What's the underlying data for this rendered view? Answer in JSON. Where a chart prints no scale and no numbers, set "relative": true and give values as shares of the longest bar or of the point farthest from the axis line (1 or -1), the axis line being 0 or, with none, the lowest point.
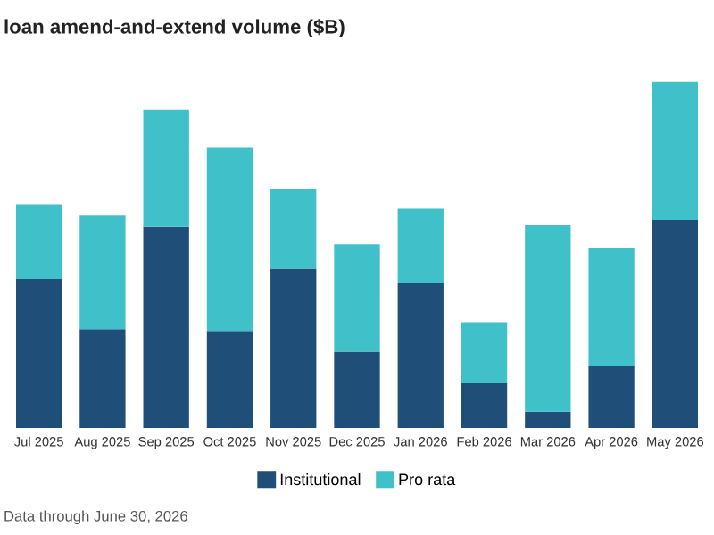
{
  "chart_data": {
    "type": "bar",
    "title": "loan amend-and-extend volume ($B)",
    "categories": [
      "Jul 2025",
      "Aug 2025",
      "Sep 2025",
      "Oct 2025",
      "Nov 2025",
      "Dec 2025",
      "Jan 2026",
      "Feb 2026",
      "Mar 2026",
      "Apr 2026",
      "May 2026"
    ],
    "stacked": true,
    "relative": true,
    "series": [
      {
        "name": "Institutional",
        "color": "#1f4e79",
        "values": [
          0.43,
          0.285,
          0.58,
          0.28,
          0.46,
          0.22,
          0.42,
          0.13,
          0.047,
          0.18,
          0.6
        ]
      },
      {
        "name": "Pro rata",
        "color": "#40c0c8",
        "values": [
          0.215,
          0.33,
          0.34,
          0.53,
          0.23,
          0.31,
          0.215,
          0.175,
          0.54,
          0.34,
          0.4
        ]
      }
    ],
    "legend": "bottom",
    "grid": false,
    "annotations": [
      "Data through June 30, 2026"
    ]
  }
}
